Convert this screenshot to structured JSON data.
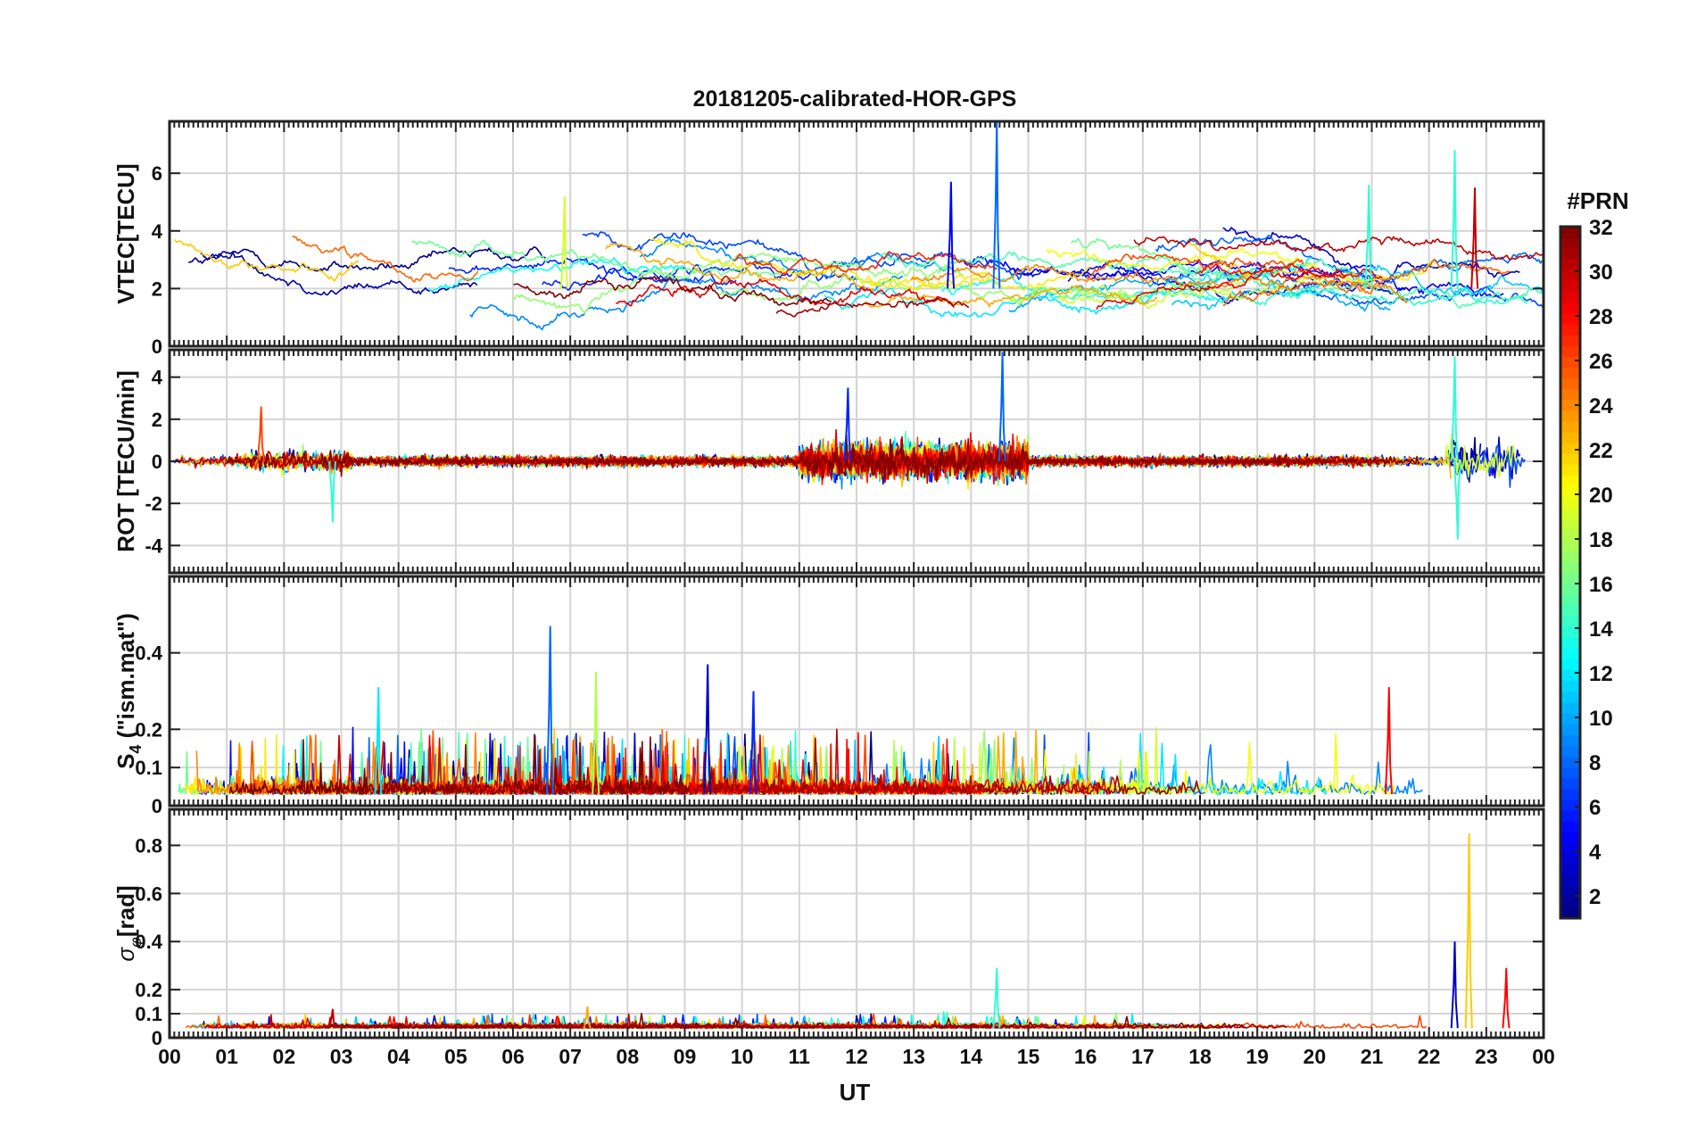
{
  "figure": {
    "title": "20181205-calibrated-HOR-GPS",
    "xlabel": "UT",
    "x_tick_labels": [
      "00",
      "01",
      "02",
      "03",
      "04",
      "05",
      "06",
      "07",
      "08",
      "09",
      "10",
      "11",
      "12",
      "13",
      "14",
      "15",
      "16",
      "17",
      "18",
      "19",
      "20",
      "21",
      "22",
      "23",
      "00"
    ]
  },
  "colorbar": {
    "label": "#PRN",
    "tick_labels": [
      "2",
      "4",
      "6",
      "8",
      "10",
      "12",
      "14",
      "16",
      "18",
      "20",
      "22",
      "24",
      "26",
      "28",
      "30",
      "32"
    ],
    "range": [
      1,
      32
    ],
    "colormap": "jet"
  },
  "chart_data": [
    {
      "type": "line",
      "ylabel": "VTEC[TECU]",
      "x_unit": "hours UT",
      "xlim": [
        0,
        24
      ],
      "ylim": [
        0,
        7.8
      ],
      "y_ticks": [
        0,
        2,
        4,
        6
      ],
      "y_tick_labels": [
        "0",
        "2",
        "4",
        "6"
      ],
      "grid": true,
      "series_color_by": "PRN (1-32, jet colormap)",
      "series_count": 32,
      "features": {
        "typical_range": [
          1,
          4
        ],
        "peaks": [
          {
            "x": 14.45,
            "y": 7.8,
            "prn": 8
          },
          {
            "x": 22.45,
            "y": 6.8,
            "prn": 14
          },
          {
            "x": 20.95,
            "y": 5.6,
            "prn": 14
          },
          {
            "x": 13.65,
            "y": 5.7,
            "prn": 5
          },
          {
            "x": 6.9,
            "y": 5.2,
            "prn": 19
          },
          {
            "x": 22.8,
            "y": 5.5,
            "prn": 30
          }
        ]
      }
    },
    {
      "type": "line",
      "ylabel": "ROT [TECU/min]",
      "xlim": [
        0,
        24
      ],
      "ylim": [
        -5.3,
        5.3
      ],
      "y_ticks": [
        -4,
        -2,
        0,
        2,
        4
      ],
      "y_tick_labels": [
        "-4",
        "-2",
        "0",
        "2",
        "4"
      ],
      "grid": true,
      "features": {
        "baseline": 0,
        "typical_amplitude": 0.5,
        "peaks": [
          {
            "x": 14.55,
            "y": 5.2,
            "prn": 8
          },
          {
            "x": 22.45,
            "y": 5.0,
            "prn": 14
          },
          {
            "x": 22.5,
            "y": -3.7,
            "prn": 14
          },
          {
            "x": 2.85,
            "y": -2.9,
            "prn": 14
          },
          {
            "x": 11.85,
            "y": 3.5,
            "prn": 6
          },
          {
            "x": 1.6,
            "y": 2.6,
            "prn": 26
          }
        ]
      }
    },
    {
      "type": "line",
      "ylabel": "S4 (\"ism.mat\")",
      "ylabel_main": "S",
      "ylabel_sub": "4",
      "ylabel_rest": "(\"ism.mat\")",
      "xlim": [
        0,
        24
      ],
      "ylim": [
        0,
        0.6
      ],
      "y_ticks": [
        0,
        0.1,
        0.2,
        0.4
      ],
      "y_tick_labels": [
        "0",
        "0.1",
        "0.2",
        "0.4"
      ],
      "grid": true,
      "features": {
        "baseline": 0.03,
        "typical_range": [
          0.02,
          0.2
        ],
        "peaks": [
          {
            "x": 6.65,
            "y": 0.47,
            "prn": 8
          },
          {
            "x": 9.4,
            "y": 0.37,
            "prn": 3
          },
          {
            "x": 7.45,
            "y": 0.35,
            "prn": 18
          },
          {
            "x": 21.3,
            "y": 0.31,
            "prn": 28
          },
          {
            "x": 10.2,
            "y": 0.3,
            "prn": 6
          },
          {
            "x": 3.65,
            "y": 0.31,
            "prn": 12
          }
        ]
      }
    },
    {
      "type": "line",
      "ylabel": "σφ[rad]",
      "ylabel_main": "σ",
      "ylabel_sub": "φ",
      "ylabel_rest": "[rad]",
      "xlim": [
        0,
        24
      ],
      "ylim": [
        0,
        0.95
      ],
      "y_ticks": [
        0,
        0.1,
        0.2,
        0.4,
        0.6,
        0.8
      ],
      "y_tick_labels": [
        "0",
        "0.1",
        "0.2",
        "0.4",
        "0.6",
        "0.8"
      ],
      "grid": true,
      "features": {
        "baseline": 0.04,
        "peaks": [
          {
            "x": 22.7,
            "y": 0.85,
            "prn": 22
          },
          {
            "x": 22.45,
            "y": 0.4,
            "prn": 3
          },
          {
            "x": 23.35,
            "y": 0.29,
            "prn": 28
          },
          {
            "x": 14.45,
            "y": 0.29,
            "prn": 14
          },
          {
            "x": 7.3,
            "y": 0.13,
            "prn": 23
          },
          {
            "x": 2.85,
            "y": 0.12,
            "prn": 30
          }
        ]
      }
    }
  ]
}
